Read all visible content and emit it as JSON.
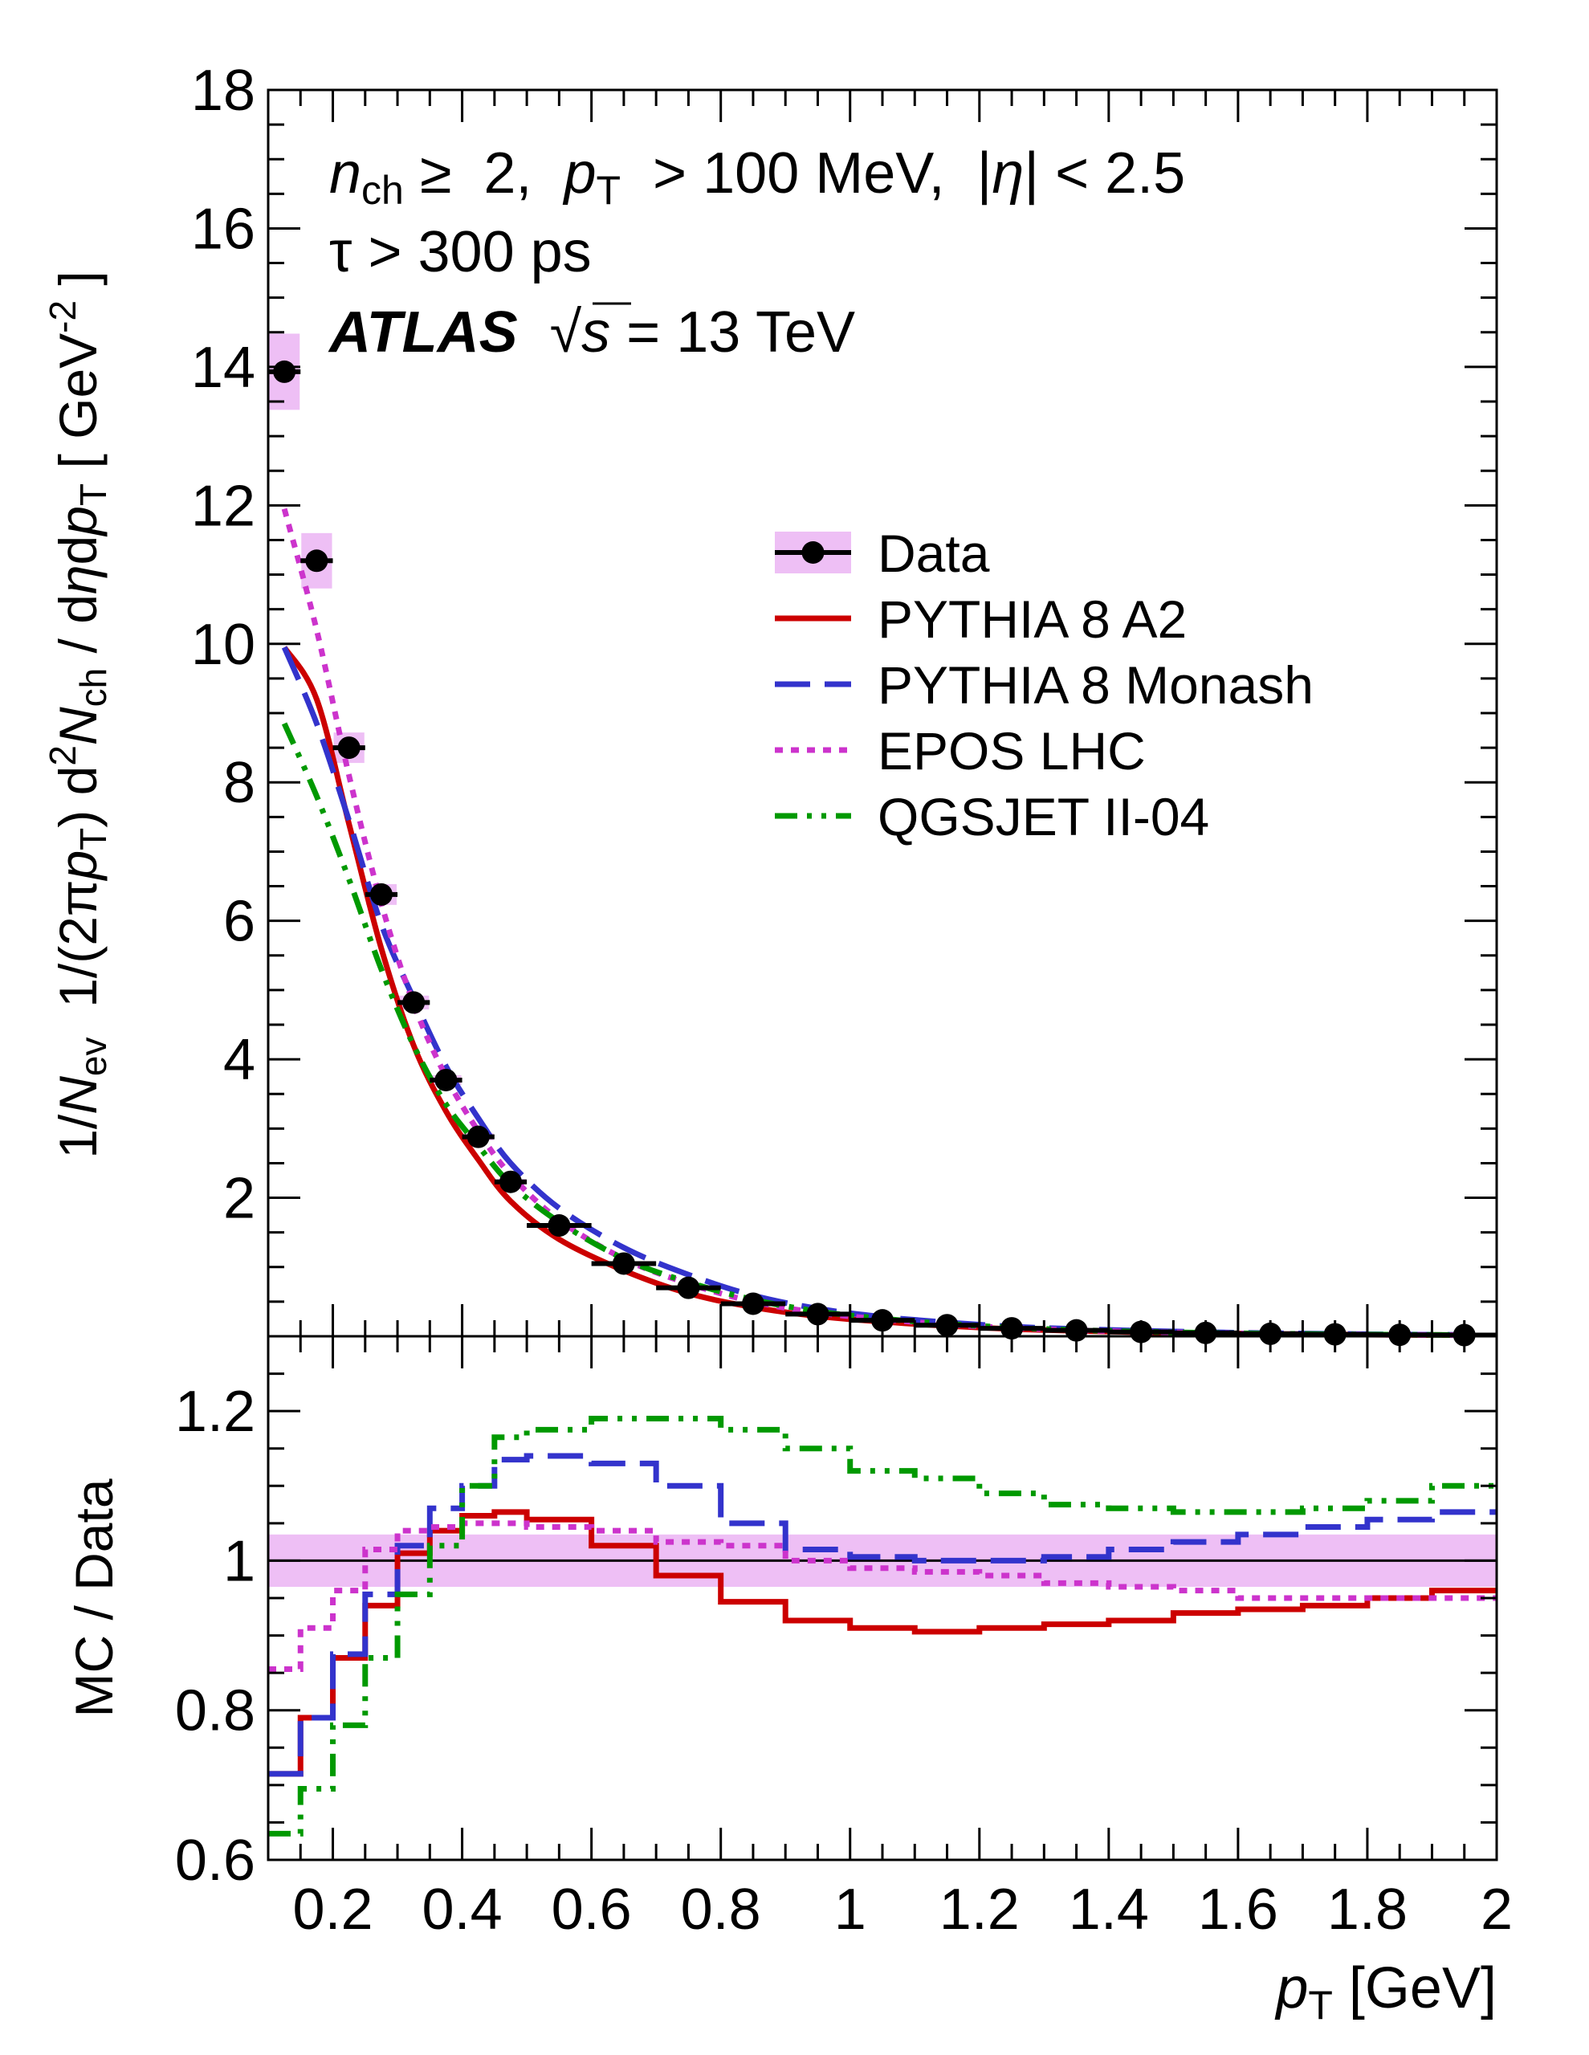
{
  "chart_data": [
    {
      "panel": "upper",
      "type": "scatter",
      "title": "",
      "annotations": {
        "cuts_nch": "n",
        "cuts_nch_sub": "ch",
        "cuts_rest": " ≥  2,  ",
        "cuts_pt": "p",
        "cuts_pt_sub": "T",
        "cuts_pt_rest": "  > 100 MeV,  |",
        "cuts_eta": "η",
        "cuts_eta_rest": "| < 2.5",
        "tau_line": "τ > 300 ps",
        "experiment": "ATLAS",
        "energy_root": "√",
        "energy_s": "s",
        "energy_rest": " = 13 TeV"
      },
      "ylabel_parts": {
        "p1": "1/",
        "p2": "N",
        "p3": "ev",
        "p4": "  1/(2π",
        "p5": "p",
        "p6": "T",
        "p7": ") d",
        "p8": "2",
        "p9": "N",
        "p10": "ch",
        "p11": " / d",
        "p12": "η",
        "p13": "d",
        "p14": "p",
        "p15": "T",
        "p16": " [ GeV",
        "p17": "-2",
        "p18": " ]"
      },
      "ylim": [
        0,
        18
      ],
      "xlim": [
        0.1,
        2.0
      ],
      "yticks": [
        2,
        4,
        6,
        8,
        10,
        12,
        14,
        16,
        18
      ],
      "ytick_labels": [
        "2",
        "4",
        "6",
        "8",
        "10",
        "12",
        "14",
        "16",
        "18"
      ],
      "data": {
        "name": "Data",
        "bin_edges": [
          0.1,
          0.15,
          0.2,
          0.25,
          0.3,
          0.35,
          0.4,
          0.45,
          0.5,
          0.6,
          0.7,
          0.8,
          0.9,
          1.0,
          1.1,
          1.2,
          1.3,
          1.4,
          1.5,
          1.6,
          1.7,
          1.8,
          1.9,
          2.0
        ],
        "x": [
          0.125,
          0.175,
          0.225,
          0.275,
          0.325,
          0.375,
          0.425,
          0.475,
          0.55,
          0.65,
          0.75,
          0.85,
          0.95,
          1.05,
          1.15,
          1.25,
          1.35,
          1.45,
          1.55,
          1.65,
          1.75,
          1.85,
          1.95
        ],
        "y": [
          13.93,
          11.2,
          8.5,
          6.38,
          4.82,
          3.7,
          2.88,
          2.23,
          1.6,
          1.05,
          0.7,
          0.47,
          0.32,
          0.23,
          0.16,
          0.115,
          0.085,
          0.063,
          0.048,
          0.036,
          0.028,
          0.021,
          0.017
        ],
        "syst_half_height": [
          0.55,
          0.4,
          0.22,
          0.15,
          0.1,
          0.07,
          0.05,
          0.04,
          0.03,
          0.02,
          0.015,
          0.01,
          0.008,
          0.006,
          0.005,
          0.004,
          0.003,
          0.003,
          0.002,
          0.002,
          0.002,
          0.002,
          0.002
        ],
        "color": "#000000",
        "band_color": "#eebff5"
      },
      "series": [
        {
          "name": "PYTHIA 8 A2",
          "color": "#cc0000",
          "style": "solid",
          "x": [
            0.125,
            0.175,
            0.225,
            0.275,
            0.325,
            0.375,
            0.425,
            0.475,
            0.55,
            0.65,
            0.75,
            0.85,
            0.95,
            1.05,
            1.15,
            1.25,
            1.35,
            1.45,
            1.55,
            1.65,
            1.75,
            1.85,
            1.95
          ],
          "y": [
            9.95,
            9.2,
            7.4,
            5.6,
            4.2,
            3.25,
            2.55,
            1.95,
            1.4,
            0.95,
            0.62,
            0.42,
            0.29,
            0.21,
            0.15,
            0.105,
            0.078,
            0.058,
            0.045,
            0.034,
            0.026,
            0.02,
            0.016
          ]
        },
        {
          "name": "PYTHIA 8 Monash",
          "color": "#3333cc",
          "style": "dashed",
          "x": [
            0.125,
            0.175,
            0.225,
            0.275,
            0.325,
            0.375,
            0.425,
            0.475,
            0.55,
            0.65,
            0.75,
            0.85,
            0.95,
            1.05,
            1.15,
            1.25,
            1.35,
            1.45,
            1.55,
            1.65,
            1.75,
            1.85,
            1.95
          ],
          "y": [
            9.95,
            8.85,
            7.45,
            5.95,
            4.88,
            3.9,
            3.15,
            2.5,
            1.85,
            1.28,
            0.89,
            0.59,
            0.4,
            0.28,
            0.2,
            0.14,
            0.105,
            0.08,
            0.06,
            0.045,
            0.035,
            0.026,
            0.02
          ]
        },
        {
          "name": "EPOS LHC",
          "color": "#cc33cc",
          "style": "dotted",
          "x": [
            0.125,
            0.175,
            0.225,
            0.275,
            0.325,
            0.375,
            0.425,
            0.475,
            0.55,
            0.65,
            0.75,
            0.85,
            0.95,
            1.05,
            1.15,
            1.25,
            1.35,
            1.45,
            1.55,
            1.65,
            1.75,
            1.85,
            1.95
          ],
          "y": [
            11.95,
            10.2,
            8.1,
            6.25,
            4.8,
            3.75,
            2.96,
            2.33,
            1.68,
            1.12,
            0.76,
            0.5,
            0.34,
            0.245,
            0.17,
            0.12,
            0.088,
            0.065,
            0.049,
            0.037,
            0.028,
            0.021,
            0.017
          ]
        },
        {
          "name": "QGSJET II-04",
          "color": "#009900",
          "style": "dashdotdot",
          "x": [
            0.125,
            0.175,
            0.225,
            0.275,
            0.325,
            0.375,
            0.425,
            0.475,
            0.55,
            0.65,
            0.75,
            0.85,
            0.95,
            1.05,
            1.15,
            1.25,
            1.35,
            1.45,
            1.55,
            1.65,
            1.75,
            1.85,
            1.95
          ],
          "y": [
            8.85,
            7.8,
            6.6,
            5.3,
            4.2,
            3.35,
            2.75,
            2.2,
            1.65,
            1.12,
            0.78,
            0.53,
            0.36,
            0.255,
            0.18,
            0.125,
            0.09,
            0.067,
            0.05,
            0.038,
            0.029,
            0.022,
            0.018
          ]
        }
      ],
      "legend": {
        "placement": "top-right",
        "entries": [
          "Data",
          "PYTHIA 8 A2",
          "PYTHIA 8 Monash",
          "EPOS LHC",
          "QGSJET II-04"
        ]
      }
    },
    {
      "panel": "ratio",
      "type": "line",
      "ylabel": "MC / Data",
      "xlabel_italic": "p",
      "xlabel_sub": "T",
      "xlabel_rest": " [GeV]",
      "ylim": [
        0.6,
        1.3
      ],
      "xlim": [
        0.1,
        2.0
      ],
      "yticks": [
        0.6,
        0.8,
        1.0,
        1.2
      ],
      "ytick_labels": [
        "0.6",
        "0.8",
        "1",
        "1.2"
      ],
      "xticks": [
        0.2,
        0.4,
        0.6,
        0.8,
        1.0,
        1.2,
        1.4,
        1.6,
        1.8,
        2.0
      ],
      "xtick_labels": [
        "0.2",
        "0.4",
        "0.6",
        "0.8",
        "1",
        "1.2",
        "1.4",
        "1.6",
        "1.8",
        "2"
      ],
      "bin_edges": [
        0.1,
        0.15,
        0.2,
        0.25,
        0.3,
        0.35,
        0.4,
        0.45,
        0.5,
        0.6,
        0.7,
        0.8,
        0.9,
        1.0,
        1.1,
        1.2,
        1.3,
        1.4,
        1.5,
        1.6,
        1.7,
        1.8,
        1.9,
        2.0
      ],
      "reference_line": 1.0,
      "band": {
        "low": 0.965,
        "high": 1.035,
        "color": "#eebff5"
      },
      "series": [
        {
          "name": "PYTHIA 8 A2",
          "color": "#cc0000",
          "style": "solid",
          "values": [
            0.715,
            0.79,
            0.87,
            0.94,
            1.01,
            1.04,
            1.06,
            1.065,
            1.055,
            1.02,
            0.98,
            0.945,
            0.92,
            0.91,
            0.905,
            0.91,
            0.915,
            0.92,
            0.93,
            0.935,
            0.94,
            0.95,
            0.96
          ]
        },
        {
          "name": "PYTHIA 8 Monash",
          "color": "#3333cc",
          "style": "dashed",
          "values": [
            0.715,
            0.79,
            0.875,
            0.955,
            1.02,
            1.07,
            1.1,
            1.135,
            1.14,
            1.13,
            1.1,
            1.05,
            1.015,
            1.005,
            1.0,
            1.0,
            1.005,
            1.015,
            1.025,
            1.035,
            1.045,
            1.055,
            1.065
          ]
        },
        {
          "name": "EPOS LHC",
          "color": "#cc33cc",
          "style": "dotted",
          "values": [
            0.855,
            0.91,
            0.96,
            1.015,
            1.04,
            1.045,
            1.05,
            1.05,
            1.045,
            1.04,
            1.025,
            1.02,
            1.0,
            0.99,
            0.985,
            0.98,
            0.97,
            0.965,
            0.96,
            0.95,
            0.95,
            0.95,
            0.95
          ]
        },
        {
          "name": "QGSJET II-04",
          "color": "#009900",
          "style": "dashdotdot",
          "values": [
            0.635,
            0.695,
            0.78,
            0.87,
            0.955,
            1.02,
            1.1,
            1.165,
            1.175,
            1.19,
            1.19,
            1.175,
            1.15,
            1.12,
            1.11,
            1.09,
            1.075,
            1.07,
            1.065,
            1.065,
            1.07,
            1.08,
            1.1
          ]
        }
      ]
    }
  ]
}
